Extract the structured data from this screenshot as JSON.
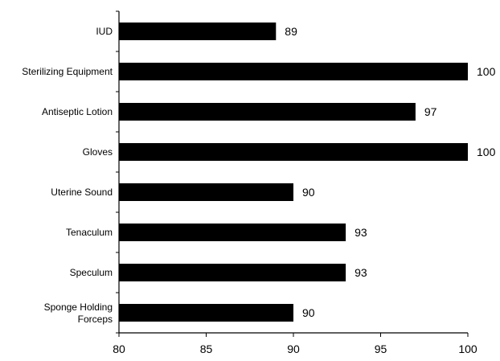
{
  "chart_data": {
    "type": "bar",
    "orientation": "horizontal",
    "categories": [
      "IUD",
      "Sterilizing Equipment",
      "Antiseptic Lotion",
      "Gloves",
      "Uterine Sound",
      "Tenaculum",
      "Speculum",
      "Sponge Holding Forceps"
    ],
    "values": [
      89,
      100,
      97,
      100,
      90,
      93,
      93,
      90
    ],
    "data_labels": [
      "89",
      "100",
      "97",
      "100",
      "90",
      "93",
      "93",
      "90"
    ],
    "xlim": [
      80,
      100
    ],
    "xticks": [
      80,
      85,
      90,
      95,
      100
    ],
    "xtick_labels": [
      "80",
      "85",
      "90",
      "95",
      "100"
    ],
    "bar_color": "#000000",
    "grid": false,
    "legend": "none",
    "title": "",
    "xlabel": "",
    "ylabel": ""
  }
}
